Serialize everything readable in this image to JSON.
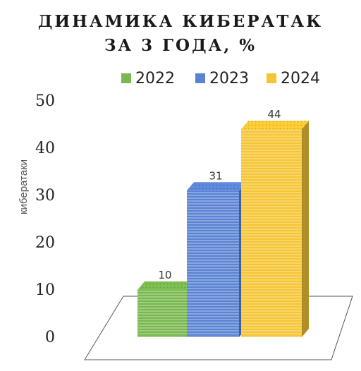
{
  "chart_data": {
    "type": "bar",
    "title": "ДИНАМИКА КИБЕРАТАК",
    "subtitle": "ЗА 3 ГОДА, %",
    "categories": [
      "2022",
      "2023",
      "2024"
    ],
    "values": [
      10,
      31,
      44
    ],
    "ylabel": "кибератаки",
    "ylim": [
      0,
      50
    ],
    "yticks": [
      "0",
      "10",
      "20",
      "30",
      "40",
      "50"
    ],
    "legend": [
      "2022",
      "2023",
      "2024"
    ],
    "legend_position": "top",
    "colors": [
      "#78b84e",
      "#5b83d3",
      "#f5c534"
    ],
    "style": "3d",
    "grid": false
  }
}
